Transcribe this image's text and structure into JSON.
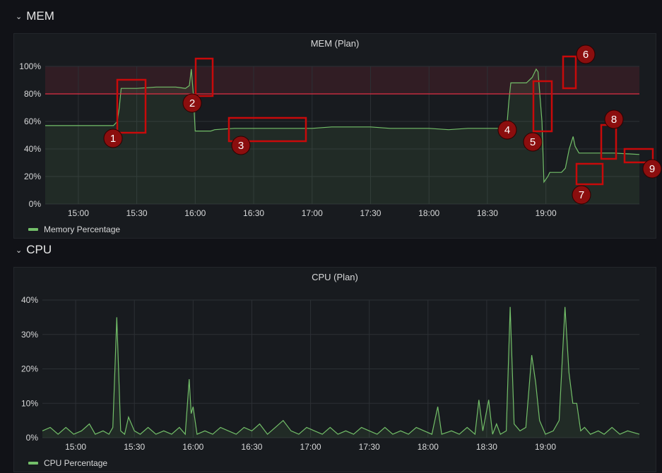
{
  "rows": {
    "mem": {
      "title": "MEM",
      "chevron": "chevron-down-icon"
    },
    "cpu": {
      "title": "CPU",
      "chevron": "chevron-down-icon"
    }
  },
  "panels": {
    "mem": {
      "title": "MEM (Plan)",
      "legend": "Memory Percentage"
    },
    "cpu": {
      "title": "CPU (Plan)",
      "legend": "CPU Percentage"
    }
  },
  "colors": {
    "series": "#73bf69",
    "threshold": "#e02f44",
    "annotation": "#c80a0a",
    "marker": "#8b0e0e"
  },
  "annotation_labels": [
    "1",
    "2",
    "3",
    "4",
    "5",
    "6",
    "7",
    "8",
    "9"
  ],
  "chart_data": [
    {
      "type": "area",
      "title": "MEM (Plan)",
      "ylim": [
        0,
        100
      ],
      "yticks": [
        "0%",
        "20%",
        "40%",
        "60%",
        "80%",
        "100%"
      ],
      "ytick_values": [
        0,
        20,
        40,
        60,
        80,
        100
      ],
      "xlim": [
        "14:43",
        "19:48"
      ],
      "xticks": [
        "15:00",
        "15:30",
        "16:00",
        "16:30",
        "17:00",
        "17:30",
        "18:00",
        "18:30",
        "19:00"
      ],
      "threshold": 80,
      "grid": true,
      "legend": "bottom-left",
      "series": [
        {
          "name": "Memory Percentage",
          "points": [
            [
              "14:43",
              57
            ],
            [
              "15:00",
              57
            ],
            [
              "15:10",
              57
            ],
            [
              "15:18",
              57
            ],
            [
              "15:20",
              60
            ],
            [
              "15:21",
              70
            ],
            [
              "15:22",
              84
            ],
            [
              "15:30",
              84
            ],
            [
              "15:40",
              85
            ],
            [
              "15:50",
              85
            ],
            [
              "15:55",
              84
            ],
            [
              "15:57",
              86
            ],
            [
              "15:58",
              98
            ],
            [
              "15:59",
              80
            ],
            [
              "16:00",
              53
            ],
            [
              "16:08",
              53
            ],
            [
              "16:10",
              54
            ],
            [
              "16:20",
              55
            ],
            [
              "16:30",
              55
            ],
            [
              "16:40",
              55
            ],
            [
              "16:50",
              55
            ],
            [
              "17:00",
              55
            ],
            [
              "17:10",
              56
            ],
            [
              "17:20",
              56
            ],
            [
              "17:30",
              56
            ],
            [
              "17:40",
              55
            ],
            [
              "17:50",
              55
            ],
            [
              "18:00",
              55
            ],
            [
              "18:10",
              54
            ],
            [
              "18:20",
              55
            ],
            [
              "18:30",
              55
            ],
            [
              "18:38",
              55
            ],
            [
              "18:40",
              57
            ],
            [
              "18:41",
              75
            ],
            [
              "18:42",
              88
            ],
            [
              "18:50",
              88
            ],
            [
              "18:53",
              92
            ],
            [
              "18:55",
              98
            ],
            [
              "18:56",
              96
            ],
            [
              "18:58",
              60
            ],
            [
              "18:59",
              16
            ],
            [
              "19:01",
              20
            ],
            [
              "19:02",
              23
            ],
            [
              "19:08",
              23
            ],
            [
              "19:10",
              26
            ],
            [
              "19:12",
              40
            ],
            [
              "19:14",
              49
            ],
            [
              "19:15",
              42
            ],
            [
              "19:17",
              37
            ],
            [
              "19:25",
              37
            ],
            [
              "19:35",
              37
            ],
            [
              "19:48",
              36
            ]
          ]
        }
      ]
    },
    {
      "type": "line",
      "title": "CPU (Plan)",
      "ylim": [
        0,
        40
      ],
      "yticks": [
        "0%",
        "10%",
        "20%",
        "30%",
        "40%"
      ],
      "ytick_values": [
        0,
        10,
        20,
        30,
        40
      ],
      "xlim": [
        "14:43",
        "19:48"
      ],
      "xticks": [
        "15:00",
        "15:30",
        "16:00",
        "16:30",
        "17:00",
        "17:30",
        "18:00",
        "18:30",
        "19:00"
      ],
      "grid": true,
      "legend": "bottom-left",
      "series": [
        {
          "name": "CPU Percentage",
          "points": [
            [
              "14:43",
              2
            ],
            [
              "14:47",
              3
            ],
            [
              "14:51",
              1
            ],
            [
              "14:55",
              3
            ],
            [
              "14:59",
              1
            ],
            [
              "15:03",
              2
            ],
            [
              "15:07",
              4
            ],
            [
              "15:10",
              1
            ],
            [
              "15:14",
              2
            ],
            [
              "15:17",
              1
            ],
            [
              "15:19",
              3
            ],
            [
              "15:21",
              35
            ],
            [
              "15:23",
              2
            ],
            [
              "15:25",
              1
            ],
            [
              "15:27",
              6
            ],
            [
              "15:30",
              2
            ],
            [
              "15:33",
              1
            ],
            [
              "15:37",
              3
            ],
            [
              "15:41",
              1
            ],
            [
              "15:45",
              2
            ],
            [
              "15:49",
              1
            ],
            [
              "15:53",
              3
            ],
            [
              "15:56",
              1
            ],
            [
              "15:58",
              17
            ],
            [
              "15:59",
              7
            ],
            [
              "16:00",
              9
            ],
            [
              "16:02",
              1
            ],
            [
              "16:06",
              2
            ],
            [
              "16:10",
              1
            ],
            [
              "16:14",
              3
            ],
            [
              "16:18",
              2
            ],
            [
              "16:22",
              1
            ],
            [
              "16:26",
              3
            ],
            [
              "16:30",
              2
            ],
            [
              "16:34",
              4
            ],
            [
              "16:38",
              1
            ],
            [
              "16:42",
              3
            ],
            [
              "16:46",
              5
            ],
            [
              "16:50",
              2
            ],
            [
              "16:54",
              1
            ],
            [
              "16:58",
              3
            ],
            [
              "17:02",
              2
            ],
            [
              "17:06",
              1
            ],
            [
              "17:10",
              3
            ],
            [
              "17:14",
              1
            ],
            [
              "17:18",
              2
            ],
            [
              "17:22",
              1
            ],
            [
              "17:26",
              3
            ],
            [
              "17:30",
              2
            ],
            [
              "17:34",
              1
            ],
            [
              "17:38",
              3
            ],
            [
              "17:42",
              1
            ],
            [
              "17:46",
              2
            ],
            [
              "17:50",
              1
            ],
            [
              "17:54",
              3
            ],
            [
              "17:58",
              2
            ],
            [
              "18:02",
              1
            ],
            [
              "18:05",
              9
            ],
            [
              "18:07",
              1
            ],
            [
              "18:12",
              2
            ],
            [
              "18:16",
              1
            ],
            [
              "18:20",
              3
            ],
            [
              "18:24",
              1
            ],
            [
              "18:26",
              11
            ],
            [
              "18:28",
              2
            ],
            [
              "18:31",
              11
            ],
            [
              "18:33",
              1
            ],
            [
              "18:35",
              4
            ],
            [
              "18:37",
              1
            ],
            [
              "18:40",
              2
            ],
            [
              "18:42",
              38
            ],
            [
              "18:44",
              4
            ],
            [
              "18:47",
              2
            ],
            [
              "18:50",
              3
            ],
            [
              "18:53",
              24
            ],
            [
              "18:55",
              16
            ],
            [
              "18:57",
              5
            ],
            [
              "19:00",
              1
            ],
            [
              "19:04",
              2
            ],
            [
              "19:07",
              5
            ],
            [
              "19:10",
              38
            ],
            [
              "19:12",
              19
            ],
            [
              "19:14",
              10
            ],
            [
              "19:16",
              10
            ],
            [
              "19:18",
              2
            ],
            [
              "19:20",
              3
            ],
            [
              "19:23",
              1
            ],
            [
              "19:27",
              2
            ],
            [
              "19:30",
              1
            ],
            [
              "19:34",
              3
            ],
            [
              "19:38",
              1
            ],
            [
              "19:42",
              2
            ],
            [
              "19:48",
              1
            ]
          ]
        }
      ]
    }
  ]
}
